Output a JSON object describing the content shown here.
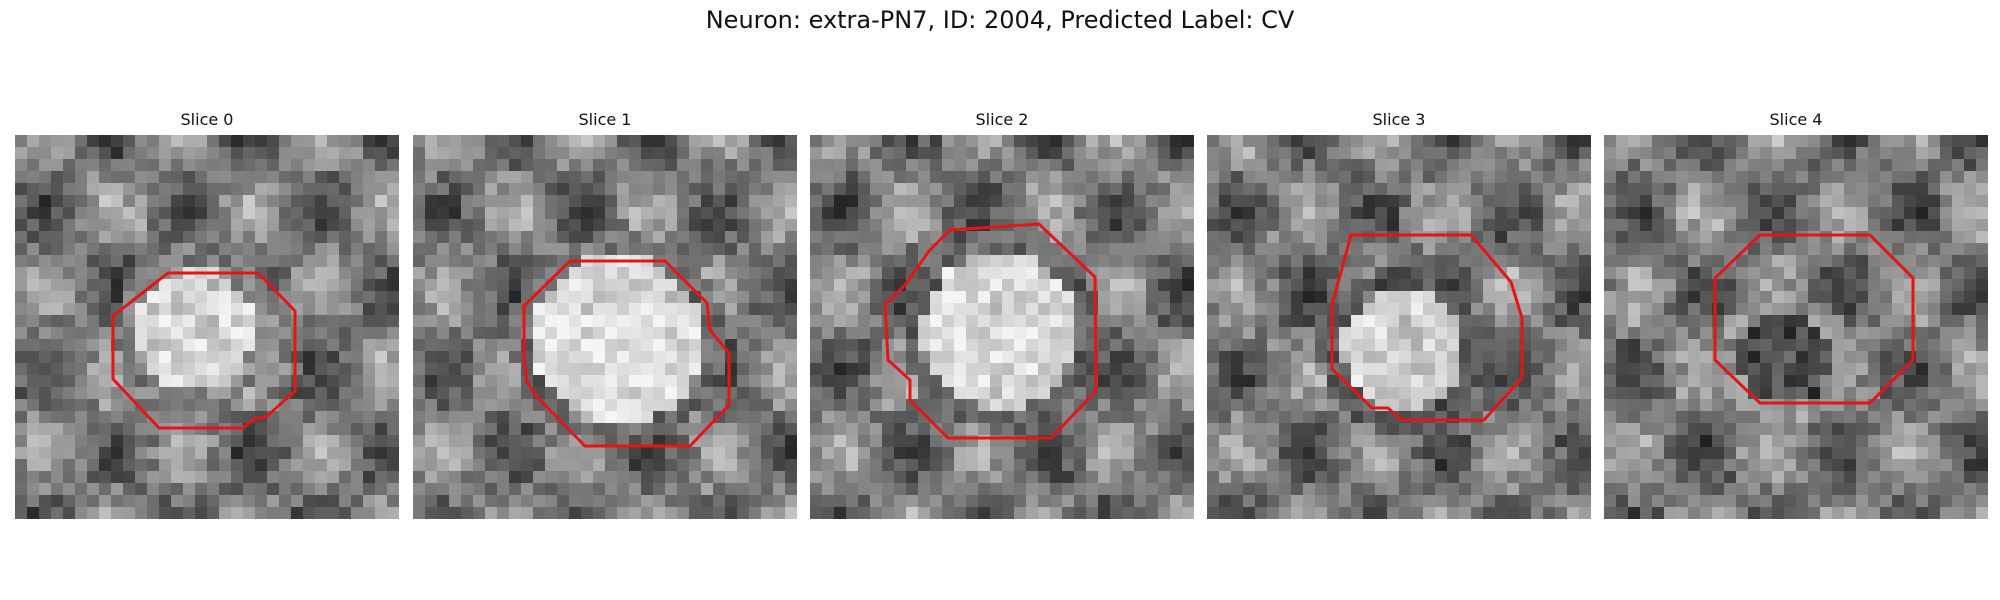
{
  "figure": {
    "title": "Neuron: extra-PN7, ID: 2004, Predicted Label: CV",
    "outline_color": "#e61515"
  },
  "panels": [
    {
      "title": "Slice 0",
      "image": "grayscale-em-slice-with-dark-cell-body-outlined"
    },
    {
      "title": "Slice 1",
      "image": "grayscale-em-slice-with-bright-round-nucleus-outlined"
    },
    {
      "title": "Slice 2",
      "image": "grayscale-em-slice-with-textured-round-nucleus-outlined"
    },
    {
      "title": "Slice 3",
      "image": "grayscale-em-slice-with-ring-shaped-membrane-outlined"
    },
    {
      "title": "Slice 4",
      "image": "grayscale-em-slice-with-dark-center-outlined"
    }
  ]
}
